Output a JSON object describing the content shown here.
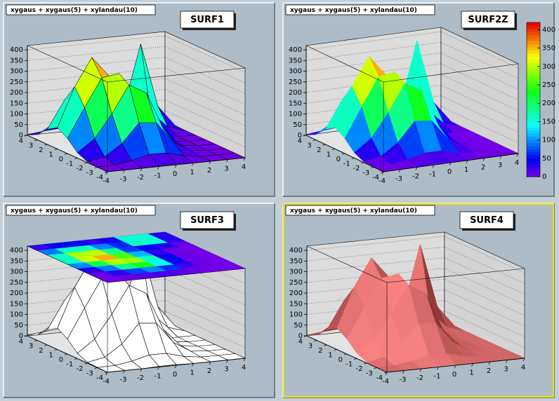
{
  "chart_data": [
    {
      "type": "surface",
      "style": "surf1",
      "title": "SURF1",
      "subtitle": "xygaus + xygaus(5) + xylandau(10)",
      "x": [
        -4,
        -3,
        -2,
        -1,
        0,
        1,
        2,
        3,
        4
      ],
      "y": [
        -4,
        -3,
        -2,
        -1,
        0,
        1,
        2,
        3,
        4
      ],
      "z": [
        [
          0,
          0,
          0,
          3,
          3,
          0,
          0,
          0,
          0
        ],
        [
          1,
          2,
          14,
          35,
          34,
          12,
          1,
          0,
          0
        ],
        [
          4,
          19,
          73,
          162,
          154,
          56,
          7,
          0,
          0
        ],
        [
          25,
          83,
          191,
          318,
          272,
          95,
          12,
          0,
          0
        ],
        [
          71,
          207,
          338,
          350,
          221,
          67,
          8,
          0,
          0
        ],
        [
          100,
          283,
          412,
          316,
          133,
          30,
          5,
          0,
          0
        ],
        [
          71,
          200,
          283,
          203,
          74,
          38,
          101,
          25,
          0
        ],
        [
          25,
          71,
          100,
          71,
          27,
          104,
          400,
          100,
          2
        ],
        [
          4,
          12,
          18,
          12,
          4,
          26,
          100,
          25,
          0
        ]
      ],
      "xlim": [
        -4,
        4
      ],
      "ylim": [
        -4,
        4
      ],
      "zlim": [
        0,
        420
      ],
      "xticks": [
        -4,
        -3,
        -2,
        -1,
        0,
        1,
        2,
        3,
        4
      ],
      "yticks": [
        -4,
        -3,
        -2,
        -1,
        0,
        1,
        2,
        3,
        4
      ],
      "zticks": [
        0,
        50,
        100,
        150,
        200,
        250,
        300,
        350,
        400
      ],
      "grid": true
    },
    {
      "type": "surface",
      "style": "surf2z",
      "title": "SURF2Z",
      "subtitle": "xygaus + xygaus(5) + xylandau(10)",
      "x": [
        -4,
        -3,
        -2,
        -1,
        0,
        1,
        2,
        3,
        4
      ],
      "y": [
        -4,
        -3,
        -2,
        -1,
        0,
        1,
        2,
        3,
        4
      ],
      "z": [
        [
          0,
          0,
          0,
          3,
          3,
          0,
          0,
          0,
          0
        ],
        [
          1,
          2,
          14,
          35,
          34,
          12,
          1,
          0,
          0
        ],
        [
          4,
          19,
          73,
          162,
          154,
          56,
          7,
          0,
          0
        ],
        [
          25,
          83,
          191,
          318,
          272,
          95,
          12,
          0,
          0
        ],
        [
          71,
          207,
          338,
          350,
          221,
          67,
          8,
          0,
          0
        ],
        [
          100,
          283,
          412,
          316,
          133,
          30,
          5,
          0,
          0
        ],
        [
          71,
          200,
          283,
          203,
          74,
          38,
          101,
          25,
          0
        ],
        [
          25,
          71,
          100,
          71,
          27,
          104,
          400,
          100,
          2
        ],
        [
          4,
          12,
          18,
          12,
          4,
          26,
          100,
          25,
          0
        ]
      ],
      "xlim": [
        -4,
        4
      ],
      "ylim": [
        -4,
        4
      ],
      "zlim": [
        0,
        420
      ],
      "xticks": [
        -4,
        -3,
        -2,
        -1,
        0,
        1,
        2,
        3,
        4
      ],
      "yticks": [
        -4,
        -3,
        -2,
        -1,
        0,
        1,
        2,
        3,
        4
      ],
      "zticks": [
        0,
        50,
        100,
        150,
        200,
        250,
        300,
        350,
        400
      ],
      "grid": true,
      "colorbar": true,
      "colorbar_ticks": [
        0,
        50,
        100,
        150,
        200,
        250,
        300,
        350,
        400
      ]
    },
    {
      "type": "surface",
      "style": "surf3",
      "title": "SURF3",
      "subtitle": "xygaus + xygaus(5) + xylandau(10)",
      "x": [
        -4,
        -3,
        -2,
        -1,
        0,
        1,
        2,
        3,
        4
      ],
      "y": [
        -4,
        -3,
        -2,
        -1,
        0,
        1,
        2,
        3,
        4
      ],
      "z": [
        [
          0,
          0,
          0,
          3,
          3,
          0,
          0,
          0,
          0
        ],
        [
          1,
          2,
          14,
          35,
          34,
          12,
          1,
          0,
          0
        ],
        [
          4,
          19,
          73,
          162,
          154,
          56,
          7,
          0,
          0
        ],
        [
          25,
          83,
          191,
          318,
          272,
          95,
          12,
          0,
          0
        ],
        [
          71,
          207,
          338,
          350,
          221,
          67,
          8,
          0,
          0
        ],
        [
          100,
          283,
          412,
          316,
          133,
          30,
          5,
          0,
          0
        ],
        [
          71,
          200,
          283,
          203,
          74,
          38,
          101,
          25,
          0
        ],
        [
          25,
          71,
          100,
          71,
          27,
          104,
          400,
          100,
          2
        ],
        [
          4,
          12,
          18,
          12,
          4,
          26,
          100,
          25,
          0
        ]
      ],
      "xlim": [
        -4,
        4
      ],
      "ylim": [
        -4,
        4
      ],
      "zlim": [
        0,
        420
      ],
      "xticks": [
        -4,
        -3,
        -2,
        -1,
        0,
        1,
        2,
        3,
        4
      ],
      "yticks": [
        -4,
        -3,
        -2,
        -1,
        0,
        1,
        2,
        3,
        4
      ],
      "zticks": [
        0,
        50,
        100,
        150,
        200,
        250,
        300,
        350,
        400
      ],
      "grid": true
    },
    {
      "type": "surface",
      "style": "surf4",
      "title": "SURF4",
      "subtitle": "xygaus + xygaus(5) + xylandau(10)",
      "x": [
        -4,
        -3,
        -2,
        -1,
        0,
        1,
        2,
        3,
        4
      ],
      "y": [
        -4,
        -3,
        -2,
        -1,
        0,
        1,
        2,
        3,
        4
      ],
      "z": [
        [
          0,
          0,
          0,
          3,
          3,
          0,
          0,
          0,
          0
        ],
        [
          1,
          2,
          14,
          35,
          34,
          12,
          1,
          0,
          0
        ],
        [
          4,
          19,
          73,
          162,
          154,
          56,
          7,
          0,
          0
        ],
        [
          25,
          83,
          191,
          318,
          272,
          95,
          12,
          0,
          0
        ],
        [
          71,
          207,
          338,
          350,
          221,
          67,
          8,
          0,
          0
        ],
        [
          100,
          283,
          412,
          316,
          133,
          30,
          5,
          0,
          0
        ],
        [
          71,
          200,
          283,
          203,
          74,
          38,
          101,
          25,
          0
        ],
        [
          25,
          71,
          100,
          71,
          27,
          104,
          400,
          100,
          2
        ],
        [
          4,
          12,
          18,
          12,
          4,
          26,
          100,
          25,
          0
        ]
      ],
      "xlim": [
        -4,
        4
      ],
      "ylim": [
        -4,
        4
      ],
      "zlim": [
        0,
        420
      ],
      "xticks": [
        -4,
        -3,
        -2,
        -1,
        0,
        1,
        2,
        3,
        4
      ],
      "yticks": [
        -4,
        -3,
        -2,
        -1,
        0,
        1,
        2,
        3,
        4
      ],
      "zticks": [
        0,
        50,
        100,
        150,
        200,
        250,
        300,
        350,
        400
      ],
      "grid": true,
      "frame_color": "#f0e000"
    }
  ]
}
